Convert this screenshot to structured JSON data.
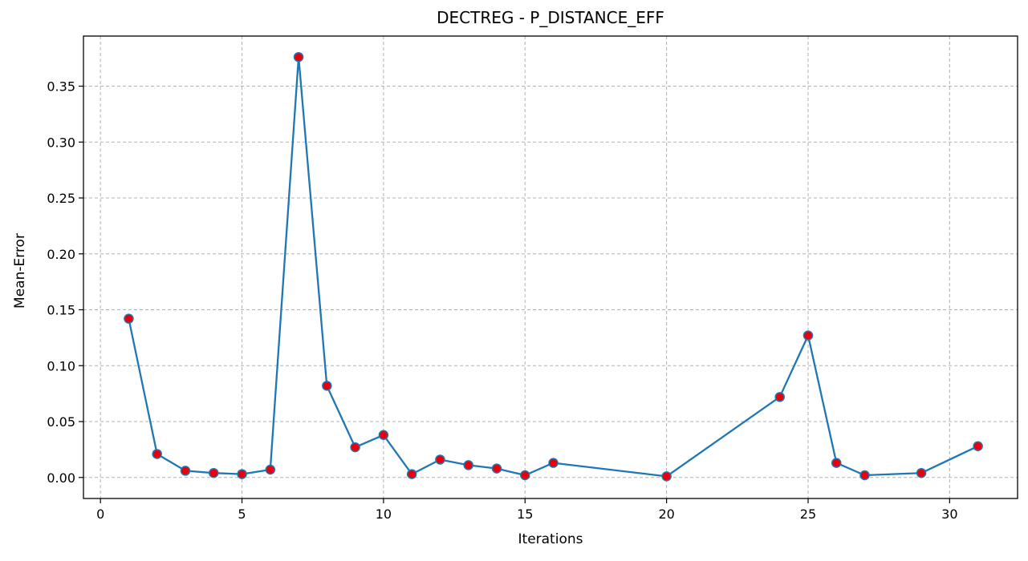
{
  "chart_data": {
    "type": "line",
    "title": "DECTREG - P_DISTANCE_EFF",
    "xlabel": "Iterations",
    "ylabel": "Mean-Error",
    "xlim": [
      -0.6,
      32.4
    ],
    "ylim": [
      -0.0188,
      0.3948
    ],
    "xticks": [
      0,
      5,
      10,
      15,
      20,
      25,
      30
    ],
    "yticks": [
      0.0,
      0.05,
      0.1,
      0.15,
      0.2,
      0.25,
      0.3,
      0.35
    ],
    "ytick_labels": [
      "0.00",
      "0.05",
      "0.10",
      "0.15",
      "0.20",
      "0.25",
      "0.30",
      "0.35"
    ],
    "grid": true,
    "line_color": "#1f77b4",
    "marker_face_color": "#e8000b",
    "marker_edge_color": "#1f77b4",
    "grid_color": "#b0b0b0",
    "x": [
      1,
      2,
      3,
      4,
      5,
      6,
      7,
      8,
      9,
      10,
      11,
      12,
      13,
      14,
      15,
      16,
      20,
      24,
      25,
      26,
      27,
      29,
      31
    ],
    "y": [
      0.142,
      0.021,
      0.006,
      0.004,
      0.003,
      0.007,
      0.376,
      0.082,
      0.027,
      0.038,
      0.003,
      0.016,
      0.011,
      0.008,
      0.002,
      0.013,
      0.001,
      0.072,
      0.127,
      0.013,
      0.002,
      0.004,
      0.028
    ]
  }
}
